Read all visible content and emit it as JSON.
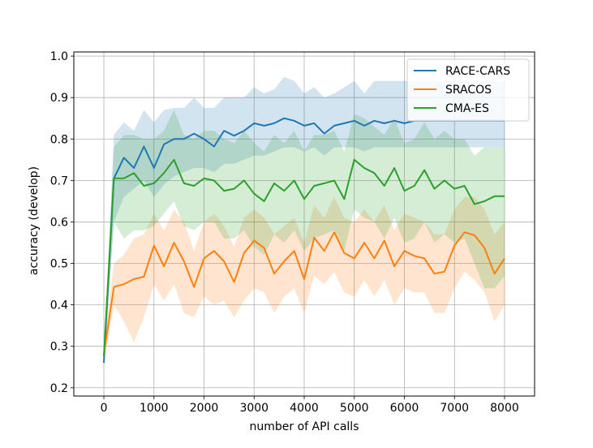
{
  "chart_data": {
    "type": "line",
    "title": "",
    "xlabel": "number of API calls",
    "ylabel": "accuracy (develop)",
    "xlim": [
      -600,
      8600
    ],
    "ylim": [
      0.18,
      1.01
    ],
    "xticks": [
      0,
      1000,
      2000,
      3000,
      4000,
      5000,
      6000,
      7000,
      8000
    ],
    "xtick_labels": [
      "0",
      "1000",
      "2000",
      "3000",
      "4000",
      "5000",
      "6000",
      "7000",
      "8000"
    ],
    "yticks": [
      0.2,
      0.3,
      0.4,
      0.5,
      0.6,
      0.7,
      0.8,
      0.9,
      1.0
    ],
    "ytick_labels": [
      "0.2",
      "0.3",
      "0.4",
      "0.5",
      "0.6",
      "0.7",
      "0.8",
      "0.9",
      "1.0"
    ],
    "grid": true,
    "legend_position": "top-right",
    "x": [
      0,
      200,
      400,
      600,
      800,
      1000,
      1200,
      1400,
      1600,
      1800,
      2000,
      2200,
      2400,
      2600,
      2800,
      3000,
      3200,
      3400,
      3600,
      3800,
      4000,
      4200,
      4400,
      4600,
      4800,
      5000,
      5200,
      5400,
      5600,
      5800,
      6000,
      6200,
      6400,
      6600,
      6800,
      7000,
      7200,
      7400,
      7600,
      7800,
      8000
    ],
    "series": [
      {
        "name": "RACE-CARS",
        "color": "#1f77b4",
        "values": [
          0.26,
          0.705,
          0.755,
          0.73,
          0.782,
          0.73,
          0.787,
          0.8,
          0.8,
          0.813,
          0.8,
          0.782,
          0.82,
          0.808,
          0.82,
          0.838,
          0.832,
          0.838,
          0.85,
          0.844,
          0.832,
          0.838,
          0.813,
          0.832,
          0.838,
          0.844,
          0.832,
          0.844,
          0.838,
          0.844,
          0.838,
          0.844,
          0.844,
          0.844,
          0.844,
          0.844,
          0.844,
          0.844,
          0.844,
          0.844,
          0.844
        ],
        "lower": [
          0.25,
          0.6,
          0.66,
          0.68,
          0.7,
          0.66,
          0.69,
          0.71,
          0.72,
          0.73,
          0.73,
          0.72,
          0.74,
          0.74,
          0.75,
          0.76,
          0.76,
          0.77,
          0.78,
          0.78,
          0.77,
          0.78,
          0.76,
          0.78,
          0.78,
          0.78,
          0.77,
          0.78,
          0.78,
          0.78,
          0.78,
          0.78,
          0.78,
          0.78,
          0.78,
          0.78,
          0.78,
          0.78,
          0.78,
          0.78,
          0.78
        ],
        "upper": [
          0.27,
          0.81,
          0.84,
          0.82,
          0.87,
          0.84,
          0.87,
          0.875,
          0.875,
          0.9,
          0.875,
          0.875,
          0.9,
          0.9,
          0.9,
          0.925,
          0.91,
          0.92,
          0.95,
          0.94,
          0.91,
          0.925,
          0.9,
          0.91,
          0.925,
          0.94,
          0.91,
          0.94,
          0.94,
          0.94,
          0.94,
          0.94,
          0.94,
          0.94,
          0.94,
          0.94,
          0.94,
          0.94,
          0.94,
          0.94,
          0.94
        ]
      },
      {
        "name": "SRACOS",
        "color": "#ff7f0e",
        "values": [
          0.28,
          0.443,
          0.45,
          0.462,
          0.468,
          0.543,
          0.493,
          0.55,
          0.505,
          0.443,
          0.512,
          0.53,
          0.505,
          0.455,
          0.525,
          0.555,
          0.537,
          0.475,
          0.505,
          0.53,
          0.462,
          0.562,
          0.53,
          0.575,
          0.525,
          0.512,
          0.55,
          0.512,
          0.555,
          0.493,
          0.53,
          0.518,
          0.512,
          0.475,
          0.48,
          0.543,
          0.575,
          0.568,
          0.537,
          0.475,
          0.512
        ],
        "lower": [
          0.26,
          0.4,
          0.36,
          0.31,
          0.37,
          0.45,
          0.41,
          0.45,
          0.38,
          0.37,
          0.42,
          0.4,
          0.41,
          0.37,
          0.41,
          0.44,
          0.43,
          0.38,
          0.42,
          0.44,
          0.38,
          0.47,
          0.45,
          0.48,
          0.43,
          0.42,
          0.46,
          0.42,
          0.46,
          0.4,
          0.44,
          0.43,
          0.43,
          0.38,
          0.38,
          0.44,
          0.48,
          0.46,
          0.43,
          0.36,
          0.4
        ],
        "upper": [
          0.3,
          0.5,
          0.52,
          0.56,
          0.57,
          0.62,
          0.58,
          0.63,
          0.6,
          0.53,
          0.6,
          0.62,
          0.59,
          0.54,
          0.61,
          0.63,
          0.61,
          0.57,
          0.59,
          0.61,
          0.55,
          0.64,
          0.61,
          0.66,
          0.61,
          0.6,
          0.63,
          0.6,
          0.64,
          0.58,
          0.62,
          0.61,
          0.6,
          0.57,
          0.57,
          0.63,
          0.66,
          0.66,
          0.63,
          0.57,
          0.6
        ]
      },
      {
        "name": "CMA-ES",
        "color": "#2ca02c",
        "values": [
          0.275,
          0.705,
          0.705,
          0.718,
          0.687,
          0.693,
          0.718,
          0.75,
          0.693,
          0.687,
          0.705,
          0.7,
          0.675,
          0.68,
          0.7,
          0.668,
          0.65,
          0.693,
          0.675,
          0.7,
          0.655,
          0.687,
          0.693,
          0.7,
          0.655,
          0.75,
          0.73,
          0.718,
          0.687,
          0.73,
          0.675,
          0.687,
          0.725,
          0.68,
          0.7,
          0.68,
          0.687,
          0.643,
          0.65,
          0.662,
          0.662
        ],
        "lower": [
          0.26,
          0.6,
          0.56,
          0.58,
          0.58,
          0.59,
          0.62,
          0.65,
          0.59,
          0.58,
          0.6,
          0.6,
          0.56,
          0.56,
          0.58,
          0.54,
          0.52,
          0.57,
          0.55,
          0.58,
          0.53,
          0.56,
          0.57,
          0.58,
          0.53,
          0.63,
          0.61,
          0.6,
          0.56,
          0.61,
          0.55,
          0.56,
          0.6,
          0.55,
          0.57,
          0.55,
          0.56,
          0.5,
          0.44,
          0.44,
          0.47
        ],
        "upper": [
          0.29,
          0.78,
          0.81,
          0.81,
          0.8,
          0.8,
          0.82,
          0.87,
          0.81,
          0.8,
          0.82,
          0.82,
          0.8,
          0.79,
          0.82,
          0.79,
          0.77,
          0.81,
          0.79,
          0.82,
          0.77,
          0.81,
          0.81,
          0.82,
          0.77,
          0.86,
          0.85,
          0.83,
          0.81,
          0.85,
          0.79,
          0.8,
          0.84,
          0.8,
          0.82,
          0.8,
          0.8,
          0.76,
          0.78,
          0.78,
          0.78
        ]
      }
    ]
  }
}
